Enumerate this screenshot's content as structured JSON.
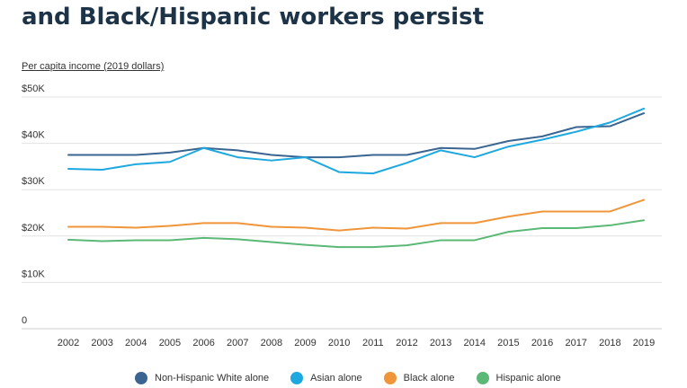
{
  "title_lines": [
    "",
    "and Black/Hispanic workers persist"
  ],
  "chart_data": {
    "type": "line",
    "title": "and Black/Hispanic workers persist",
    "ylabel": "Per capita income (2019 dollars)",
    "xlabel": "",
    "ylim": [
      0,
      50000
    ],
    "y_ticks": [
      0,
      10000,
      20000,
      30000,
      40000,
      50000
    ],
    "y_tick_labels": [
      "0",
      "$10K",
      "$20K",
      "$30K",
      "$40K",
      "$50K"
    ],
    "grid": true,
    "legend_position": "bottom",
    "categories": [
      "2002",
      "2003",
      "2004",
      "2005",
      "2006",
      "2007",
      "2008",
      "2009",
      "2010",
      "2011",
      "2012",
      "2013",
      "2014",
      "2015",
      "2016",
      "2017",
      "2018",
      "2019"
    ],
    "series": [
      {
        "name": "Non-Hispanic White alone",
        "color": "#3a6591",
        "values": [
          37500,
          37500,
          37500,
          38000,
          39000,
          38500,
          37500,
          37000,
          37000,
          37500,
          37500,
          39000,
          38800,
          40500,
          41500,
          43500,
          43700,
          46500
        ]
      },
      {
        "name": "Asian alone",
        "color": "#1da8e0",
        "values": [
          34500,
          34300,
          35500,
          36000,
          39000,
          37000,
          36300,
          37000,
          33800,
          33500,
          35800,
          38500,
          37000,
          39300,
          40800,
          42500,
          44500,
          47500
        ]
      },
      {
        "name": "Black alone",
        "color": "#f0953a",
        "values": [
          22000,
          22000,
          21800,
          22200,
          22800,
          22800,
          22000,
          21800,
          21200,
          21800,
          21600,
          22800,
          22800,
          24200,
          25300,
          25300,
          25300,
          27800
        ]
      },
      {
        "name": "Hispanic alone",
        "color": "#5bb876",
        "values": [
          19200,
          18900,
          19100,
          19100,
          19600,
          19300,
          18700,
          18100,
          17600,
          17600,
          18000,
          19100,
          19100,
          20900,
          21700,
          21700,
          22300,
          23400
        ]
      }
    ]
  }
}
